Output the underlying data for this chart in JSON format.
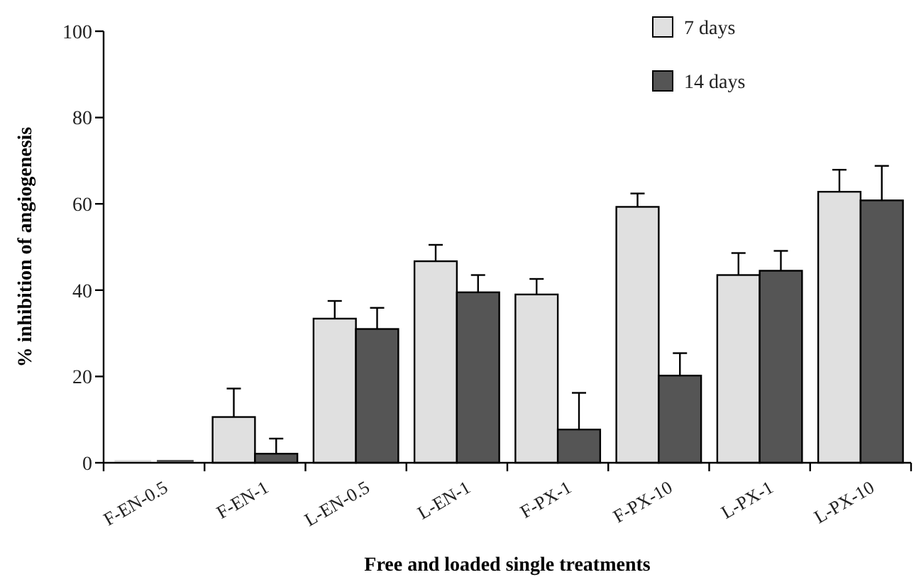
{
  "chart_data": {
    "type": "bar",
    "xlabel": "Free and loaded single treatments",
    "ylabel": "% inhibition of angiogenesis",
    "categories": [
      "F-EN-0.5",
      "F-EN-1",
      "L-EN-0.5",
      "L-EN-1",
      "F-PX-1",
      "F-PX-10",
      "L-PX-1",
      "L-PX-10"
    ],
    "series": [
      {
        "name": "7 days",
        "color": "#e0e0e0",
        "values": [
          0,
          10.6,
          33.4,
          46.7,
          39.0,
          59.3,
          43.5,
          62.8
        ],
        "errors": [
          null,
          [
            10.6,
            17.2
          ],
          [
            33.4,
            37.5
          ],
          [
            46.7,
            50.5
          ],
          [
            39.0,
            42.6
          ],
          [
            59.3,
            62.4
          ],
          [
            43.5,
            48.6
          ],
          [
            62.8,
            67.9
          ]
        ]
      },
      {
        "name": "14 days",
        "color": "#555555",
        "values": [
          0,
          2.1,
          31.0,
          39.5,
          7.7,
          20.2,
          44.5,
          60.8
        ],
        "errors": [
          null,
          [
            2.1,
            5.6
          ],
          [
            31.0,
            35.9
          ],
          [
            39.5,
            43.5
          ],
          [
            7.7,
            16.2
          ],
          [
            20.2,
            25.4
          ],
          [
            44.5,
            49.1
          ],
          [
            60.8,
            68.8
          ]
        ]
      }
    ],
    "ylim": [
      0,
      100
    ],
    "yticks": [
      0,
      20,
      40,
      60,
      80,
      100
    ],
    "grid": false,
    "legend": "top right"
  }
}
